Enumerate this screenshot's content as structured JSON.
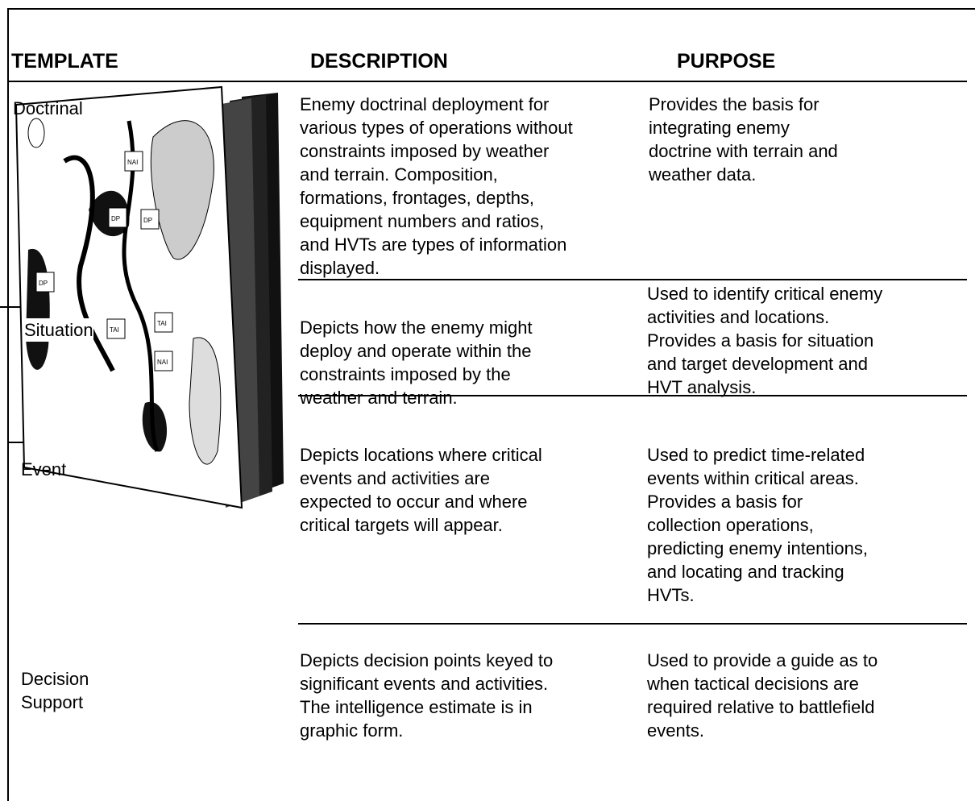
{
  "header": {
    "template": "TEMPLATE",
    "description": "DESCRIPTION",
    "purpose": "PURPOSE"
  },
  "figure": {
    "labels": [
      "NAI",
      "DP",
      "DP",
      "DP",
      "TAI",
      "TAI",
      "NAI"
    ]
  },
  "rows": [
    {
      "template": [
        "Doctrinal"
      ],
      "description": [
        "Enemy doctrinal deployment for",
        "various types of operations without",
        "constraints imposed by weather",
        "and terrain. Composition,",
        "formations, frontages, depths,",
        "equipment numbers and ratios,",
        "and HVTs are types of information",
        "displayed."
      ],
      "purpose": [
        "Provides the basis for",
        "integrating enemy",
        "doctrine with terrain and",
        "weather data."
      ]
    },
    {
      "template": [
        "Situation"
      ],
      "description": [
        "Depicts how the enemy might",
        "deploy and operate within the",
        "constraints imposed by the",
        "weather and terrain."
      ],
      "purpose": [
        "Used to identify critical enemy",
        "activities and locations.",
        "Provides a basis for situation",
        "and target development and",
        "HVT analysis."
      ]
    },
    {
      "template": [
        "Event"
      ],
      "description": [
        "Depicts locations where critical",
        "events and activities are",
        "expected to occur and where",
        "critical targets will appear."
      ],
      "purpose": [
        "Used to predict time-related",
        "events within critical areas.",
        "Provides a basis for",
        "collection operations,",
        "predicting enemy intentions,",
        "and locating and tracking",
        "HVTs."
      ]
    },
    {
      "template": [
        "Decision",
        "Support"
      ],
      "description": [
        "Depicts decision points keyed to",
        "significant events and activities.",
        "The intelligence estimate is in",
        "graphic form."
      ],
      "purpose": [
        "Used to provide a guide as to",
        "when tactical decisions are",
        "required relative to battlefield",
        "events."
      ]
    }
  ]
}
